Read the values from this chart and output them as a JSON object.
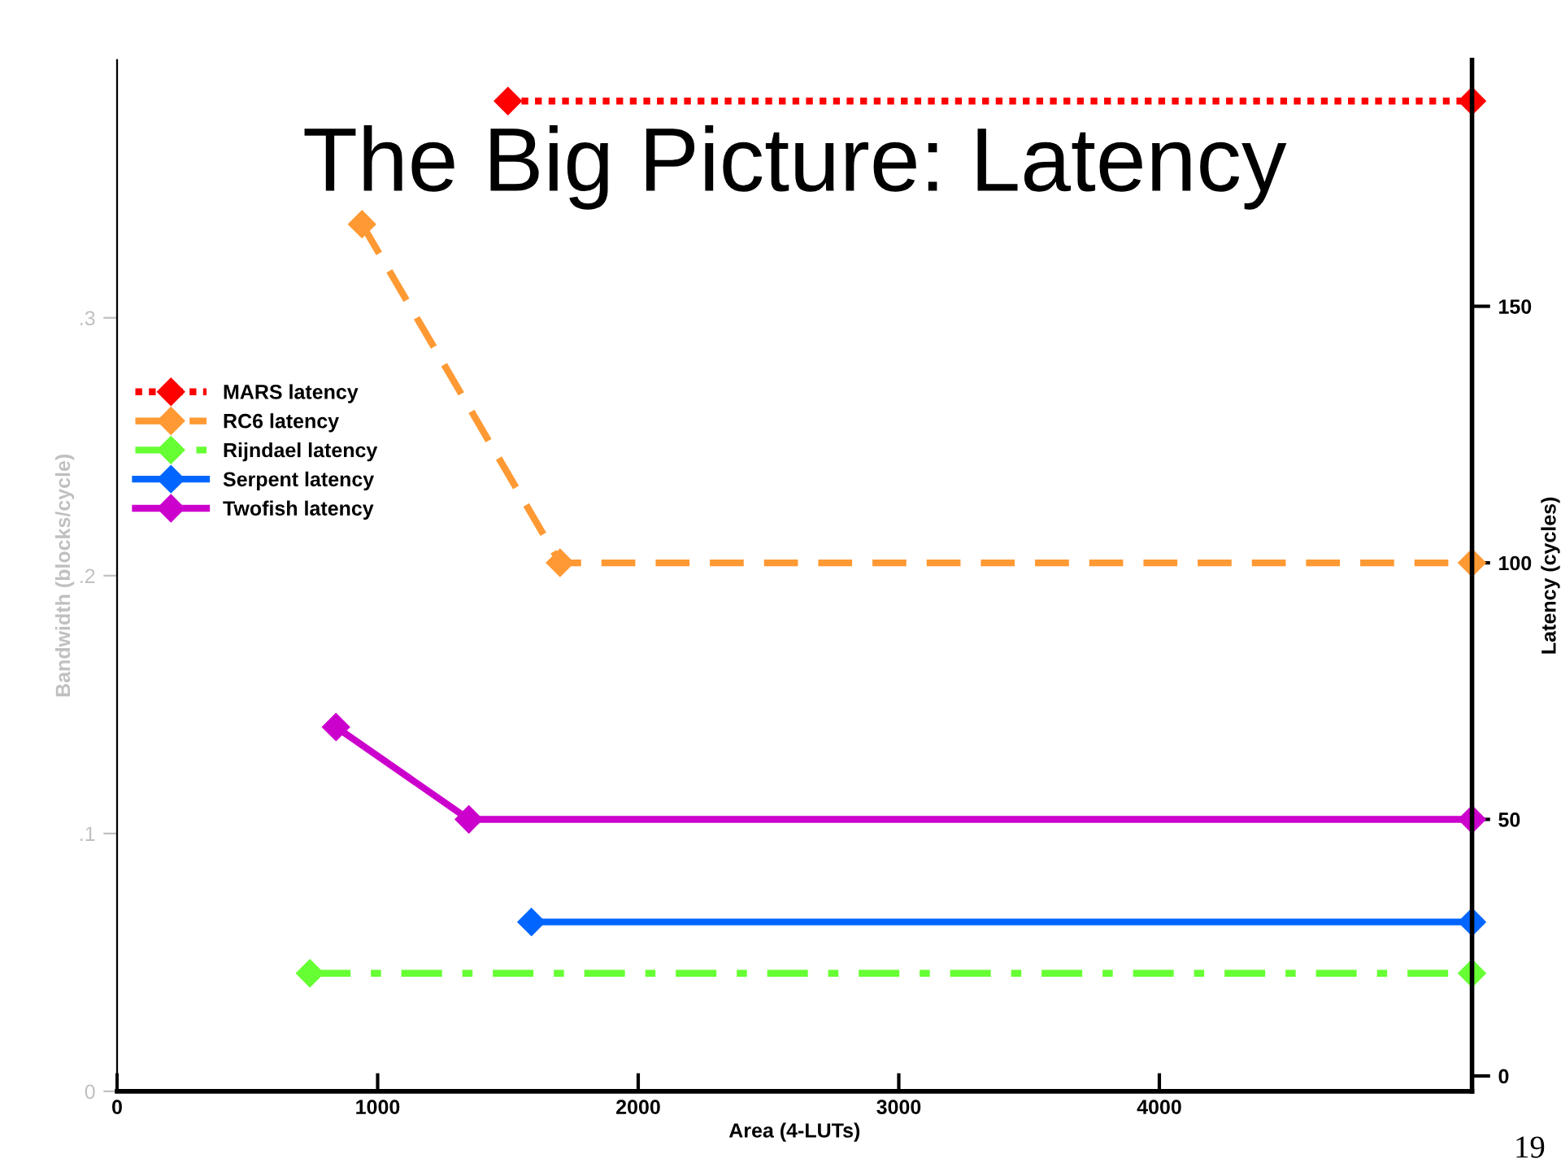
{
  "chart_data": {
    "type": "line",
    "title": "The Big Picture: Latency",
    "xlabel": "Area (4-LUTs)",
    "ylabel": "Bandwidth (blocks/cycle)",
    "y2label": "Latency (cycles)",
    "annotations": [
      "19"
    ],
    "series": [
      {
        "name": "MARS latency",
        "color": "#ff0000",
        "line_style": "dotted",
        "axis": "y2",
        "x": [
          1500,
          5200
        ],
        "values": [
          190,
          190
        ]
      },
      {
        "name": "RC6 latency",
        "color": "#ff9933",
        "line_style": "dashed",
        "axis": "y2",
        "x": [
          940,
          1700,
          5200
        ],
        "values": [
          166,
          100,
          100
        ]
      },
      {
        "name": "Rijndael latency",
        "color": "#66ff33",
        "line_style": "dashdot",
        "axis": "y2",
        "x": [
          740,
          5200
        ],
        "values": [
          20,
          20
        ]
      },
      {
        "name": "Serpent latency",
        "color": "#0066ff",
        "line_style": "solid",
        "axis": "y2",
        "x": [
          1590,
          5200
        ],
        "values": [
          30,
          30
        ]
      },
      {
        "name": "Twofish latency",
        "color": "#cc00cc",
        "line_style": "solid",
        "axis": "y2",
        "x": [
          840,
          1350,
          5200
        ],
        "values": [
          68,
          50,
          50
        ]
      }
    ],
    "marker": "diamond",
    "legend": "center left",
    "grid": false,
    "xlim": [
      0,
      5200
    ],
    "xticks": [
      0,
      1000,
      2000,
      3000,
      4000
    ],
    "ylim": [
      0,
      0.4
    ],
    "yticks": [
      0,
      {
        "value": 0.1,
        "label": ".1"
      },
      {
        "value": 0.2,
        "label": ".2"
      },
      {
        "value": 0.3,
        "label": ".3"
      }
    ],
    "y2lim": [
      -3,
      198
    ],
    "y2ticks": [
      0,
      50,
      100,
      150
    ]
  }
}
